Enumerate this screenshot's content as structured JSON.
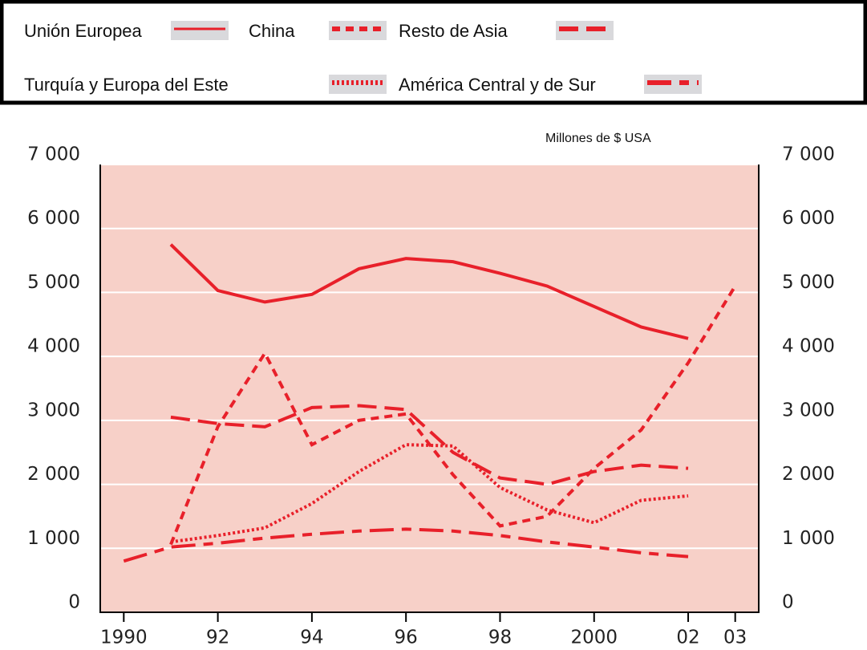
{
  "chart_data": {
    "type": "line",
    "unit_label": "Millones de $ USA",
    "x": [
      1990,
      1991,
      1992,
      1993,
      1994,
      1995,
      1996,
      1997,
      1998,
      1999,
      2000,
      2001,
      2002,
      2003
    ],
    "series": [
      {
        "name": "Unión Europea",
        "color": "#e8202a",
        "values": [
          null,
          5750,
          5030,
          4850,
          4970,
          5370,
          5530,
          5480,
          5300,
          5100,
          4780,
          4460,
          4280,
          null
        ]
      },
      {
        "name": "China",
        "color": "#e8202a",
        "values": [
          null,
          1060,
          2900,
          4050,
          2620,
          3000,
          3100,
          2150,
          1350,
          1500,
          2250,
          2850,
          3900,
          5100
        ]
      },
      {
        "name": "Resto de Asia",
        "color": "#e8202a",
        "values": [
          null,
          3050,
          2950,
          2900,
          3200,
          3230,
          3170,
          2500,
          2100,
          2000,
          2200,
          2300,
          2250,
          null
        ]
      },
      {
        "name": "Turquía y Europa del Este",
        "color": "#e8202a",
        "values": [
          null,
          1100,
          1200,
          1320,
          1700,
          2200,
          2620,
          2600,
          1950,
          1600,
          1400,
          1750,
          1820,
          null
        ]
      },
      {
        "name": "América Central y de Sur",
        "color": "#e8202a",
        "values": [
          800,
          1020,
          1080,
          1160,
          1220,
          1270,
          1300,
          1270,
          1200,
          1100,
          1020,
          930,
          870,
          null
        ]
      }
    ],
    "xlim": [
      1989.5,
      2003.5
    ],
    "xticks": [
      {
        "value": 1990,
        "label": "1990"
      },
      {
        "value": 1992,
        "label": "92"
      },
      {
        "value": 1994,
        "label": "94"
      },
      {
        "value": 1996,
        "label": "96"
      },
      {
        "value": 1998,
        "label": "98"
      },
      {
        "value": 2000,
        "label": "2000"
      },
      {
        "value": 2002,
        "label": "02"
      },
      {
        "value": 2003,
        "label": "03"
      }
    ],
    "ylim": [
      0,
      7000
    ],
    "yticks": [
      0,
      {
        "value": 1000,
        "label": "1 000"
      },
      {
        "value": 2000,
        "label": "2 000"
      },
      {
        "value": 3000,
        "label": "3 000"
      },
      {
        "value": 4000,
        "label": "4 000"
      },
      {
        "value": 5000,
        "label": "5 000"
      },
      {
        "value": 6000,
        "label": "6 000"
      },
      {
        "value": 7000,
        "label": "7 000"
      }
    ],
    "grid": true,
    "plot_background": "#f7d0c8"
  }
}
